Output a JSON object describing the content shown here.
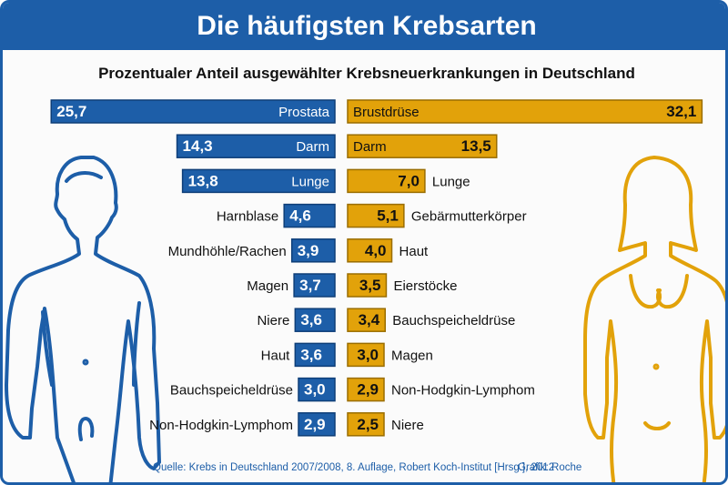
{
  "title": "Die häufigsten Krebsarten",
  "subtitle": "Prozentualer Anteil ausgewählter Krebsneuerkrankungen in Deutschland",
  "source": "Quelle: Krebs in Deutschland 2007/2008, 8. Auflage, Robert Koch-Institut [Hrsg.], 2012",
  "credit": "Grafik: Roche",
  "colors": {
    "men": "#1d5ea8",
    "women": "#e2a20a",
    "frame": "#1d5ea8"
  },
  "icons": {
    "men_figure": "male-body-outline-icon",
    "women_figure": "female-body-outline-icon"
  },
  "chart_data": {
    "type": "bar",
    "orientation": "horizontal-butterfly",
    "series": [
      {
        "name": "",
        "side": "left",
        "color": "#1d5ea8",
        "categories": [
          "Prostata",
          "Darm",
          "Lunge",
          "Harnblase",
          "Mundhöhle/Rachen",
          "Magen",
          "Niere",
          "Haut",
          "Bauchspeicheldrüse",
          "Non-Hodgkin-Lymphom"
        ],
        "values": [
          25.7,
          14.3,
          13.8,
          4.6,
          3.9,
          3.7,
          3.6,
          3.6,
          3.0,
          2.9
        ],
        "labels": [
          "25,7",
          "14,3",
          "13,8",
          "4,6",
          "3,9",
          "3,7",
          "3,6",
          "3,6",
          "3,0",
          "2,9"
        ]
      },
      {
        "name": "",
        "side": "right",
        "color": "#e2a20a",
        "categories": [
          "Brustdrüse",
          "Darm",
          "Lunge",
          "Gebärmutterkörper",
          "Haut",
          "Eierstöcke",
          "Bauchspeicheldrüse",
          "Magen",
          "Non-Hodgkin-Lymphom",
          "Niere"
        ],
        "values": [
          32.1,
          13.5,
          7.0,
          5.1,
          4.0,
          3.5,
          3.4,
          3.0,
          2.9,
          2.5
        ],
        "labels": [
          "32,1",
          "13,5",
          "7,0",
          "5,1",
          "4,0",
          "3,5",
          "3,4",
          "3,0",
          "2,9",
          "2,5"
        ]
      }
    ],
    "grid": false,
    "legend": "none"
  }
}
